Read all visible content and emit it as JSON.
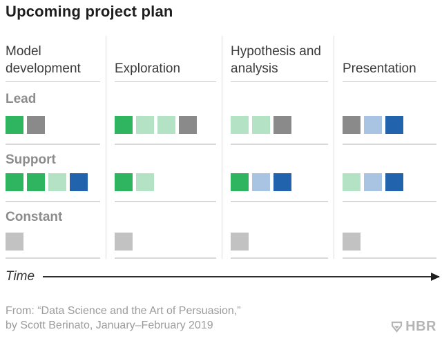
{
  "title": "Upcoming project plan",
  "colors": {
    "green": "#2fb45f",
    "light_green": "#b4e2c4",
    "blue": "#2263ad",
    "light_blue": "#a9c4e2",
    "gray": "#8a8a8a",
    "light_gray": "#c2c2c2"
  },
  "chart_data": {
    "type": "table",
    "title": "Upcoming project plan",
    "columns": [
      "Model development",
      "Exploration",
      "Hypothesis and analysis",
      "Presentation"
    ],
    "rows": [
      "Lead",
      "Support",
      "Constant"
    ],
    "x_axis_label": "Time",
    "legend": "none shown; block colors encode team members/roles",
    "cells": {
      "lead": [
        [
          "green",
          "gray"
        ],
        [
          "green",
          "light_green",
          "light_green",
          "gray"
        ],
        [
          "light_green",
          "light_green",
          "gray"
        ],
        [
          "gray",
          "light_blue",
          "blue"
        ]
      ],
      "support": [
        [
          "green",
          "green",
          "light_green",
          "blue"
        ],
        [
          "green",
          "light_green"
        ],
        [
          "green",
          "light_blue",
          "blue"
        ],
        [
          "light_green",
          "light_blue",
          "blue"
        ]
      ],
      "constant": [
        [
          "light_gray"
        ],
        [
          "light_gray"
        ],
        [
          "light_gray"
        ],
        [
          "light_gray"
        ]
      ]
    }
  },
  "time_axis": {
    "label": "Time"
  },
  "footer": {
    "line1": "From: “Data Science and the Art of Persuasion,”",
    "line2": "by Scott Berinato, January–February 2019"
  },
  "logo": {
    "text": "HBR",
    "icon": "hbr-shield-icon"
  }
}
